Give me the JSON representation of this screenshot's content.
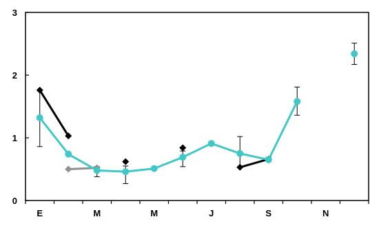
{
  "chart_data": {
    "type": "line",
    "title": "",
    "xlabel": "",
    "ylabel": "",
    "categories": [
      "E",
      "",
      "M",
      "",
      "M",
      "",
      "J",
      "",
      "S",
      "",
      "N",
      ""
    ],
    "ylim": [
      0,
      3
    ],
    "yticks": [
      0,
      1,
      2,
      3
    ],
    "grid": false,
    "series": [
      {
        "color": "#000000",
        "marker": "diamond",
        "points": [
          {
            "x": 0,
            "y": 1.76
          },
          {
            "x": 1,
            "y": 1.03
          },
          {
            "x": 3,
            "y": 0.62,
            "isolated": true
          },
          {
            "x": 5,
            "y": 0.84,
            "isolated": true
          },
          {
            "x": 7,
            "y": 0.53
          },
          {
            "x": 8,
            "y": 0.66
          }
        ]
      },
      {
        "color": "#909090",
        "marker": "diamond",
        "points": [
          {
            "x": 1,
            "y": 0.5
          },
          {
            "x": 2,
            "y": 0.52
          }
        ]
      },
      {
        "color": "#40C8C8",
        "marker": "circle",
        "points": [
          {
            "x": 0,
            "y": 1.32,
            "err": [
              0.86,
              1.76
            ]
          },
          {
            "x": 1,
            "y": 0.74
          },
          {
            "x": 2,
            "y": 0.48,
            "err": [
              0.38,
              0.54
            ]
          },
          {
            "x": 3,
            "y": 0.46,
            "err": [
              0.27,
              0.55
            ]
          },
          {
            "x": 4,
            "y": 0.51
          },
          {
            "x": 5,
            "y": 0.69,
            "err": [
              0.54,
              0.79
            ]
          },
          {
            "x": 6,
            "y": 0.91
          },
          {
            "x": 7,
            "y": 0.75,
            "err": [
              0.53,
              1.02
            ]
          },
          {
            "x": 8,
            "y": 0.65,
            "err": [
              0.62,
              0.69
            ]
          },
          {
            "x": 9,
            "y": 1.58,
            "err": [
              1.36,
              1.81
            ]
          },
          {
            "x": 11,
            "y": 2.34,
            "err": [
              2.17,
              2.51
            ],
            "isolated": true
          }
        ]
      }
    ]
  }
}
